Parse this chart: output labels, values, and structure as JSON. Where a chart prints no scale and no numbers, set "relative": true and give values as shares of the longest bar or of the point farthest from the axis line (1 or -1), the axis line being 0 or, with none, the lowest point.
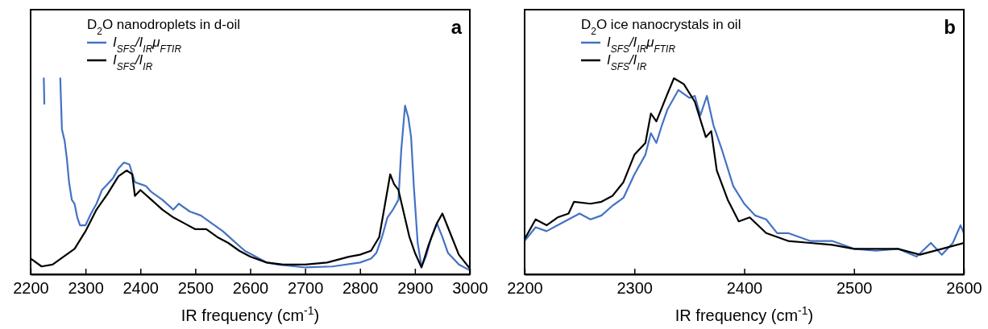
{
  "chart_data": [
    {
      "type": "line",
      "relative": true,
      "xlabel": "IR frequency (cm$^{-1}$)",
      "legend_title": "D$_{2}$O nanodroplets in d-oil",
      "legend": "top left",
      "annotations": [
        "a"
      ],
      "xlim": [
        2200,
        3000
      ],
      "xticks": [
        2200,
        2300,
        2400,
        2500,
        2600,
        2700,
        2800,
        2900,
        3000
      ],
      "series": [
        {
          "name": "I$_{SFS}$/I$_{IR}$μ$_{FTIR}$",
          "color": "#4472c4",
          "x": [
            2224,
            2225,
            2240,
            2254,
            2257,
            2262,
            2266,
            2270,
            2275,
            2280,
            2285,
            2290,
            2300,
            2310,
            2320,
            2330,
            2340,
            2350,
            2360,
            2370,
            2380,
            2390,
            2400,
            2410,
            2420,
            2440,
            2460,
            2470,
            2490,
            2510,
            2530,
            2550,
            2570,
            2590,
            2610,
            2630,
            2650,
            2700,
            2750,
            2800,
            2820,
            2830,
            2840,
            2850,
            2860,
            2870,
            2875,
            2882,
            2888,
            2893,
            2898,
            2905,
            2912,
            2920,
            2930,
            2940,
            2950,
            2960,
            2980,
            3000
          ],
          "values": [
            1.0,
            0.87,
            null,
            1.0,
            0.74,
            0.68,
            0.59,
            0.47,
            0.38,
            0.36,
            0.29,
            0.25,
            0.25,
            0.31,
            0.36,
            0.43,
            0.46,
            0.49,
            0.54,
            0.57,
            0.56,
            0.47,
            0.46,
            0.45,
            0.42,
            0.38,
            0.33,
            0.36,
            0.32,
            0.3,
            0.26,
            0.22,
            0.17,
            0.12,
            0.09,
            0.06,
            0.05,
            0.035,
            0.04,
            0.06,
            0.08,
            0.11,
            0.19,
            0.29,
            0.33,
            0.38,
            0.63,
            0.86,
            0.8,
            0.7,
            0.45,
            0.16,
            0.04,
            0.09,
            0.19,
            0.26,
            0.19,
            0.11,
            0.05,
            0.02
          ]
        },
        {
          "name": "I$_{SFS}$/I$_{IR}$",
          "color": "#000000",
          "x": [
            2200,
            2220,
            2240,
            2260,
            2280,
            2300,
            2320,
            2340,
            2360,
            2375,
            2385,
            2390,
            2400,
            2420,
            2440,
            2460,
            2480,
            2500,
            2520,
            2540,
            2560,
            2580,
            2600,
            2630,
            2660,
            2700,
            2740,
            2780,
            2800,
            2820,
            2835,
            2845,
            2855,
            2862,
            2870,
            2880,
            2890,
            2900,
            2912,
            2925,
            2940,
            2950,
            2960,
            2980,
            3000
          ],
          "values": [
            0.08,
            0.04,
            0.05,
            0.09,
            0.13,
            0.22,
            0.33,
            0.41,
            0.5,
            0.53,
            0.51,
            0.4,
            0.43,
            0.38,
            0.33,
            0.29,
            0.26,
            0.23,
            0.23,
            0.19,
            0.16,
            0.12,
            0.09,
            0.06,
            0.05,
            0.05,
            0.06,
            0.09,
            0.1,
            0.12,
            0.19,
            0.35,
            0.51,
            0.46,
            0.43,
            0.31,
            0.19,
            0.11,
            0.035,
            0.15,
            0.26,
            0.31,
            0.24,
            0.1,
            0.03
          ]
        }
      ]
    },
    {
      "type": "line",
      "relative": true,
      "xlabel": "IR frequency (cm$^{-1}$)",
      "legend_title": "D$_{2}$O ice nanocrystals in oil",
      "legend": "top left",
      "annotations": [
        "b"
      ],
      "xlim": [
        2200,
        2600
      ],
      "xticks": [
        2200,
        2300,
        2400,
        2500,
        2600
      ],
      "series": [
        {
          "name": "I$_{SFS}$/I$_{IR}$μ$_{FTIR}$",
          "color": "#4472c4",
          "x": [
            2200,
            2210,
            2220,
            2230,
            2240,
            2250,
            2260,
            2270,
            2280,
            2290,
            2300,
            2310,
            2315,
            2320,
            2325,
            2330,
            2340,
            2350,
            2355,
            2360,
            2366,
            2372,
            2380,
            2390,
            2400,
            2410,
            2420,
            2430,
            2440,
            2460,
            2480,
            2500,
            2520,
            2540,
            2557,
            2570,
            2580,
            2590,
            2597,
            2600
          ],
          "values": [
            0.17,
            0.24,
            0.22,
            0.25,
            0.28,
            0.31,
            0.28,
            0.3,
            0.35,
            0.39,
            0.51,
            0.61,
            0.72,
            0.67,
            0.76,
            0.84,
            0.94,
            0.9,
            0.91,
            0.81,
            0.91,
            0.76,
            0.63,
            0.45,
            0.36,
            0.3,
            0.28,
            0.21,
            0.21,
            0.17,
            0.17,
            0.13,
            0.12,
            0.13,
            0.09,
            0.16,
            0.1,
            0.16,
            0.25,
            0.21
          ]
        },
        {
          "name": "I$_{SFS}$/I$_{IR}$",
          "color": "#000000",
          "x": [
            2200,
            2210,
            2220,
            2230,
            2240,
            2245,
            2260,
            2270,
            2280,
            2290,
            2300,
            2310,
            2315,
            2320,
            2330,
            2336,
            2345,
            2355,
            2365,
            2370,
            2375,
            2385,
            2395,
            2405,
            2420,
            2440,
            2460,
            2480,
            2500,
            2520,
            2540,
            2560,
            2580,
            2600
          ],
          "values": [
            0.18,
            0.28,
            0.25,
            0.29,
            0.31,
            0.37,
            0.36,
            0.37,
            0.4,
            0.47,
            0.61,
            0.67,
            0.82,
            0.78,
            0.92,
            1.0,
            0.97,
            0.88,
            0.7,
            0.73,
            0.53,
            0.38,
            0.27,
            0.29,
            0.21,
            0.17,
            0.16,
            0.15,
            0.13,
            0.13,
            0.13,
            0.1,
            0.13,
            0.16
          ]
        }
      ]
    }
  ]
}
